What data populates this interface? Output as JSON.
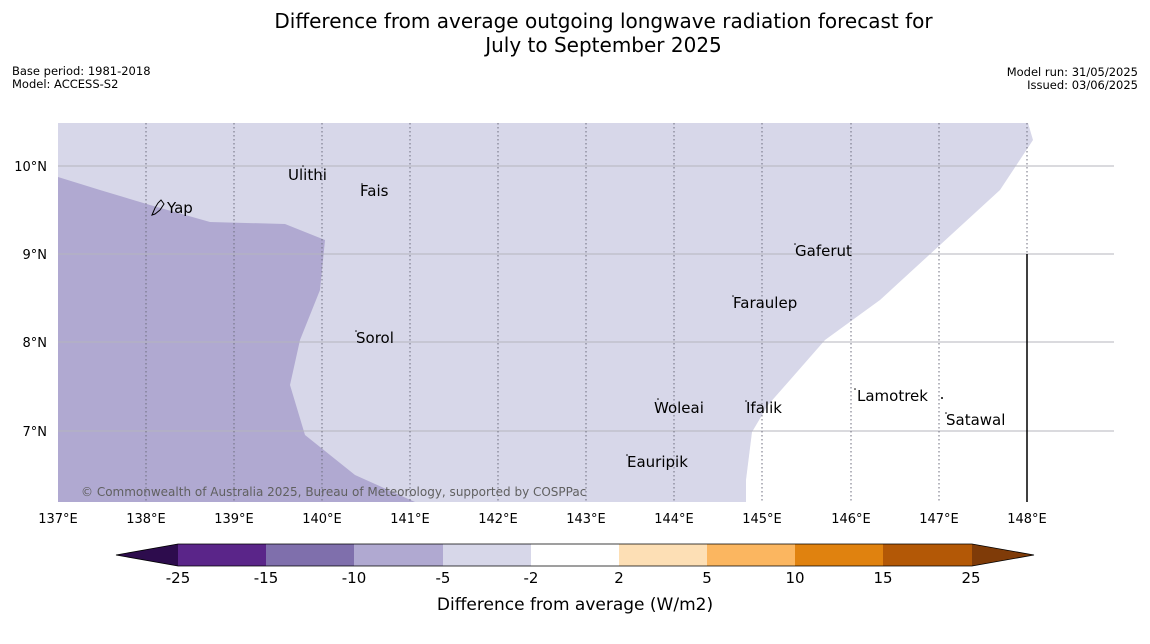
{
  "title_line1": "Difference from average outgoing longwave radiation forecast for",
  "title_line2": "July to September 2025",
  "base_period": "Base period: 1981-2018",
  "model": "Model: ACCESS-S2",
  "model_run": "Model run: 31/05/2025",
  "issued": "Issued: 03/06/2025",
  "copyright": "© Commonwealth of Australia 2025, Bureau of Meteorology, supported by COSPPac",
  "x_ticks": [
    "137°E",
    "138°E",
    "139°E",
    "140°E",
    "141°E",
    "142°E",
    "143°E",
    "144°E",
    "145°E",
    "146°E",
    "147°E",
    "148°E"
  ],
  "y_ticks": [
    "10°N",
    "9°N",
    "8°N",
    "7°N"
  ],
  "places": [
    "Ulithi",
    "Fais",
    "Yap",
    "Gaferut",
    "Faraulep",
    "Sorol",
    "Lamotrek",
    "Woleai",
    "Ifalik",
    "Satawal",
    "Eauripik"
  ],
  "colorbar": {
    "title": "Difference from average (W/m2)",
    "ticks": [
      "-25",
      "-15",
      "-10",
      "-5",
      "-2",
      "2",
      "5",
      "10",
      "15",
      "25"
    ],
    "colors": [
      "#2d0c4d",
      "#5a2589",
      "#7f6fac",
      "#b0a9d1",
      "#d7d7e9",
      "#ffffff",
      "#fddfb5",
      "#fbb660",
      "#e0820f",
      "#b35806",
      "#7f3b08"
    ]
  },
  "map_colors": {
    "class_minus10_minus5": "#b0a9d1",
    "class_minus5_minus2": "#d7d7e9",
    "class_neutral": "#ffffff"
  }
}
